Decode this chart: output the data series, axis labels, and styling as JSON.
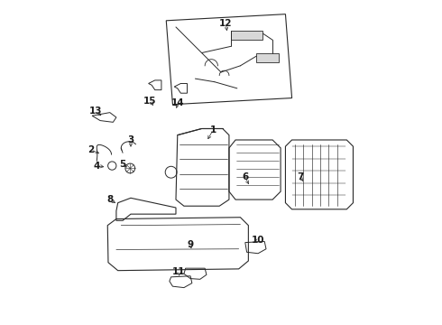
{
  "background_color": "#ffffff",
  "line_color": "#2a2a2a",
  "label_color": "#1a1a1a",
  "fig_width": 4.9,
  "fig_height": 3.6,
  "dpi": 100,
  "label_positions": {
    "1": [
      0.475,
      0.4,
      0.455,
      0.435
    ],
    "2": [
      0.095,
      0.46,
      0.13,
      0.475
    ],
    "3": [
      0.22,
      0.43,
      0.22,
      0.46
    ],
    "4": [
      0.115,
      0.51,
      0.145,
      0.515
    ],
    "5": [
      0.195,
      0.505,
      0.215,
      0.52
    ],
    "6": [
      0.575,
      0.545,
      0.59,
      0.575
    ],
    "7": [
      0.745,
      0.545,
      0.76,
      0.565
    ],
    "8": [
      0.155,
      0.615,
      0.18,
      0.63
    ],
    "9": [
      0.405,
      0.755,
      0.41,
      0.775
    ],
    "10": [
      0.615,
      0.74,
      0.6,
      0.755
    ],
    "11": [
      0.37,
      0.84,
      0.37,
      0.86
    ],
    "12": [
      0.515,
      0.07,
      0.52,
      0.1
    ],
    "13": [
      0.11,
      0.34,
      0.135,
      0.36
    ],
    "14": [
      0.365,
      0.315,
      0.36,
      0.34
    ],
    "15": [
      0.28,
      0.31,
      0.295,
      0.33
    ]
  },
  "lw": 0.8,
  "clw": 0.5
}
